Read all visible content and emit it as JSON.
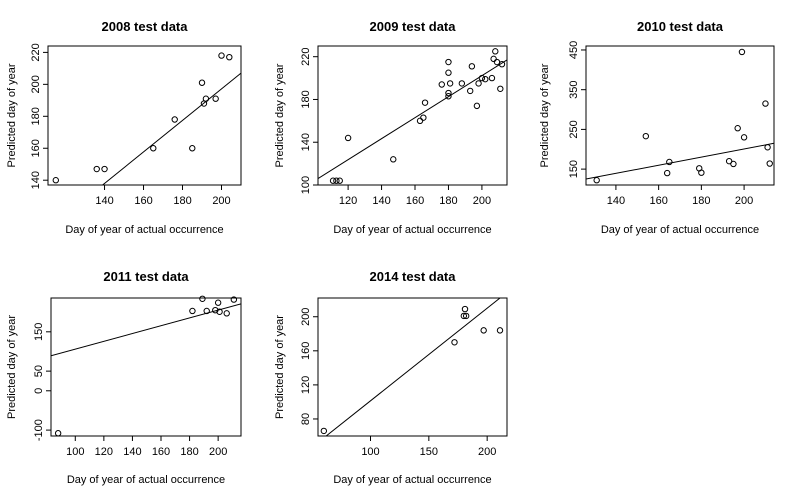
{
  "chart_data": [
    {
      "type": "scatter",
      "title": "2008  test data",
      "xlabel": "Day of year of actual occurrence",
      "ylabel": "Predicted day of year",
      "xlim": [
        111,
        210
      ],
      "ylim": [
        137,
        224
      ],
      "xticks": [
        140,
        160,
        180,
        200
      ],
      "yticks": [
        140,
        160,
        180,
        200,
        220
      ],
      "ytick_labels": [
        "140",
        "160",
        "180",
        "200",
        "220"
      ],
      "points": [
        {
          "x": 115,
          "y": 140
        },
        {
          "x": 136,
          "y": 147
        },
        {
          "x": 140,
          "y": 147
        },
        {
          "x": 165,
          "y": 160
        },
        {
          "x": 176,
          "y": 178
        },
        {
          "x": 185,
          "y": 160
        },
        {
          "x": 190,
          "y": 201
        },
        {
          "x": 191,
          "y": 188
        },
        {
          "x": 192,
          "y": 191
        },
        {
          "x": 197,
          "y": 191
        },
        {
          "x": 200,
          "y": 218
        },
        {
          "x": 204,
          "y": 217
        }
      ],
      "fit_line": {
        "x": [
          139,
          210
        ],
        "y": [
          137,
          207
        ]
      }
    },
    {
      "type": "scatter",
      "title": "2009  test data",
      "xlabel": "Day of year of actual occurrence",
      "ylabel": "Predicted day of year",
      "xlim": [
        102,
        215
      ],
      "ylim": [
        100,
        230
      ],
      "xticks": [
        120,
        140,
        160,
        180,
        200
      ],
      "yticks": [
        100,
        140,
        180,
        220
      ],
      "ytick_labels": [
        "100",
        "140",
        "180",
        "220"
      ],
      "points": [
        {
          "x": 111,
          "y": 104
        },
        {
          "x": 113,
          "y": 104
        },
        {
          "x": 115,
          "y": 104
        },
        {
          "x": 120,
          "y": 144
        },
        {
          "x": 147,
          "y": 124
        },
        {
          "x": 163,
          "y": 160
        },
        {
          "x": 165,
          "y": 163
        },
        {
          "x": 166,
          "y": 177
        },
        {
          "x": 176,
          "y": 194
        },
        {
          "x": 180,
          "y": 183
        },
        {
          "x": 180,
          "y": 186
        },
        {
          "x": 180,
          "y": 205
        },
        {
          "x": 180,
          "y": 215
        },
        {
          "x": 181,
          "y": 195
        },
        {
          "x": 188,
          "y": 195
        },
        {
          "x": 193,
          "y": 188
        },
        {
          "x": 194,
          "y": 211
        },
        {
          "x": 197,
          "y": 174
        },
        {
          "x": 198,
          "y": 195
        },
        {
          "x": 200,
          "y": 200
        },
        {
          "x": 202,
          "y": 199
        },
        {
          "x": 206,
          "y": 200
        },
        {
          "x": 207,
          "y": 218
        },
        {
          "x": 208,
          "y": 225
        },
        {
          "x": 209,
          "y": 215
        },
        {
          "x": 211,
          "y": 190
        },
        {
          "x": 212,
          "y": 213
        }
      ],
      "fit_line": {
        "x": [
          102,
          215
        ],
        "y": [
          106,
          217
        ]
      }
    },
    {
      "type": "scatter",
      "title": "2010  test data",
      "xlabel": "Day of year of actual occurrence",
      "ylabel": "Predicted day of year",
      "xlim": [
        126,
        214
      ],
      "ylim": [
        110,
        460
      ],
      "xticks": [
        140,
        160,
        180,
        200
      ],
      "yticks": [
        150,
        250,
        350,
        450
      ],
      "ytick_labels": [
        "150",
        "250",
        "350",
        "450"
      ],
      "points": [
        {
          "x": 131,
          "y": 122
        },
        {
          "x": 154,
          "y": 233
        },
        {
          "x": 164,
          "y": 140
        },
        {
          "x": 165,
          "y": 168
        },
        {
          "x": 179,
          "y": 152
        },
        {
          "x": 180,
          "y": 141
        },
        {
          "x": 193,
          "y": 170
        },
        {
          "x": 195,
          "y": 163
        },
        {
          "x": 197,
          "y": 253
        },
        {
          "x": 199,
          "y": 445
        },
        {
          "x": 200,
          "y": 230
        },
        {
          "x": 210,
          "y": 315
        },
        {
          "x": 211,
          "y": 205
        },
        {
          "x": 212,
          "y": 164
        }
      ],
      "fit_line": {
        "x": [
          126,
          214
        ],
        "y": [
          125,
          215
        ]
      }
    },
    {
      "type": "scatter",
      "title": "2011  test data",
      "xlabel": "Day of year of actual occurrence",
      "ylabel": "Predicted day of year",
      "xlim": [
        83,
        216
      ],
      "ylim": [
        -115,
        236
      ],
      "xticks": [
        100,
        120,
        140,
        160,
        180,
        200
      ],
      "yticks": [
        -100,
        0,
        50,
        150
      ],
      "ytick_labels": [
        "-100",
        "0",
        "50",
        "150"
      ],
      "points": [
        {
          "x": 88,
          "y": -108
        },
        {
          "x": 182,
          "y": 203
        },
        {
          "x": 189,
          "y": 234
        },
        {
          "x": 192,
          "y": 203
        },
        {
          "x": 198,
          "y": 205
        },
        {
          "x": 200,
          "y": 224
        },
        {
          "x": 201,
          "y": 201
        },
        {
          "x": 206,
          "y": 197
        },
        {
          "x": 211,
          "y": 232
        }
      ],
      "fit_line": {
        "x": [
          83,
          216
        ],
        "y": [
          89,
          221
        ]
      }
    },
    {
      "type": "scatter",
      "title": "2014  test data",
      "xlabel": "Day of year of actual occurrence",
      "ylabel": "Predicted day of year",
      "xlim": [
        55,
        217
      ],
      "ylim": [
        60,
        222
      ],
      "xticks": [
        100,
        150,
        200
      ],
      "yticks": [
        80,
        120,
        160,
        200
      ],
      "ytick_labels": [
        "80",
        "120",
        "160",
        "200"
      ],
      "points": [
        {
          "x": 60,
          "y": 66
        },
        {
          "x": 172,
          "y": 170
        },
        {
          "x": 180,
          "y": 201
        },
        {
          "x": 181,
          "y": 209
        },
        {
          "x": 182,
          "y": 201
        },
        {
          "x": 197,
          "y": 184
        },
        {
          "x": 211,
          "y": 184
        }
      ],
      "fit_line": {
        "x": [
          62,
          211
        ],
        "y": [
          60,
          222
        ]
      }
    }
  ]
}
